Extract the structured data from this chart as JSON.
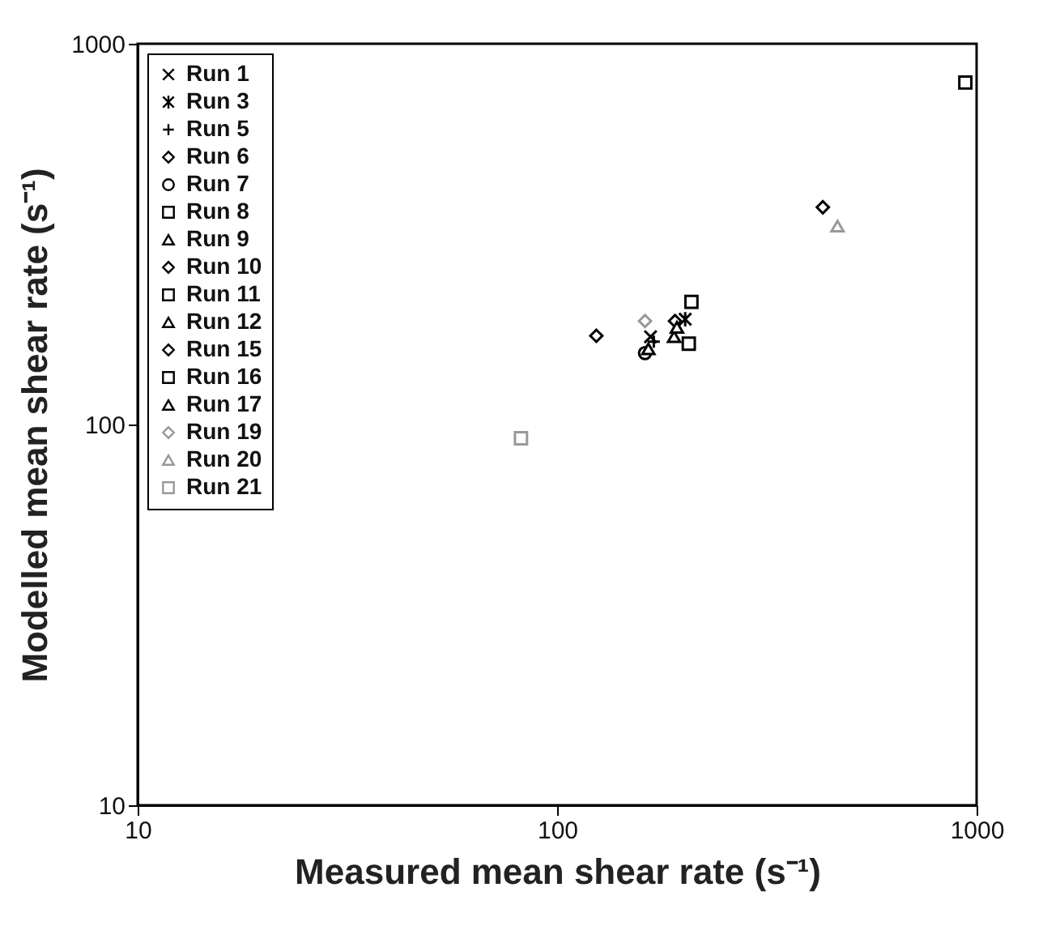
{
  "chart_data": {
    "type": "scatter",
    "xlabel": "Measured mean shear rate (s⁻¹)",
    "ylabel": "Modelled mean shear rate   (s⁻¹)",
    "log": "xy",
    "xlim": [
      10,
      1000
    ],
    "ylim": [
      10,
      1000
    ],
    "xticks": [
      10,
      100,
      1000
    ],
    "yticks": [
      10,
      100,
      1000
    ],
    "grid": false,
    "legend": "top left",
    "series": [
      {
        "name": "Run 1",
        "color": "#000000",
        "marker": "cross",
        "x": [
          167
        ],
        "values": [
          170
        ]
      },
      {
        "name": "Run 3",
        "color": "#000000",
        "marker": "cross",
        "x": [
          202
        ],
        "values": [
          189
        ]
      },
      {
        "name": "Run 5",
        "color": "#000000",
        "marker": "cross",
        "x": [
          170
        ],
        "values": [
          165
        ]
      },
      {
        "name": "Run 6",
        "color": "#000000",
        "marker": "diamond",
        "x": [
          191
        ],
        "values": [
          187
        ]
      },
      {
        "name": "Run 7",
        "color": "#000000",
        "marker": "circle",
        "x": [
          162
        ],
        "values": [
          154
        ]
      },
      {
        "name": "Run 8",
        "color": "#000000",
        "marker": "square",
        "x": [
          209
        ],
        "values": [
          210
        ]
      },
      {
        "name": "Run 9",
        "color": "#000000",
        "marker": "triangle",
        "x": [
          165
        ],
        "values": [
          158
        ]
      },
      {
        "name": "Run 10",
        "color": "#000000",
        "marker": "diamond",
        "x": [
          430
        ],
        "values": [
          372
        ]
      },
      {
        "name": "Run 11",
        "color": "#000000",
        "marker": "square",
        "x": [
          940
        ],
        "values": [
          791
        ]
      },
      {
        "name": "Run 12",
        "color": "#000000",
        "marker": "triangle",
        "x": [
          190
        ],
        "values": [
          170
        ]
      },
      {
        "name": "Run 15",
        "color": "#000000",
        "marker": "diamond",
        "x": [
          124
        ],
        "values": [
          171
        ]
      },
      {
        "name": "Run 16",
        "color": "#000000",
        "marker": "square",
        "x": [
          206
        ],
        "values": [
          163
        ]
      },
      {
        "name": "Run 17",
        "color": "#000000",
        "marker": "triangle",
        "x": [
          193
        ],
        "values": [
          180
        ]
      },
      {
        "name": "Run 19",
        "color": "#999999",
        "marker": "diamond",
        "x": [
          162
        ],
        "values": [
          187
        ]
      },
      {
        "name": "Run 20",
        "color": "#999999",
        "marker": "triangle",
        "x": [
          466
        ],
        "values": [
          332
        ]
      },
      {
        "name": "Run 21",
        "color": "#999999",
        "marker": "square",
        "x": [
          82
        ],
        "values": [
          92
        ]
      }
    ]
  }
}
